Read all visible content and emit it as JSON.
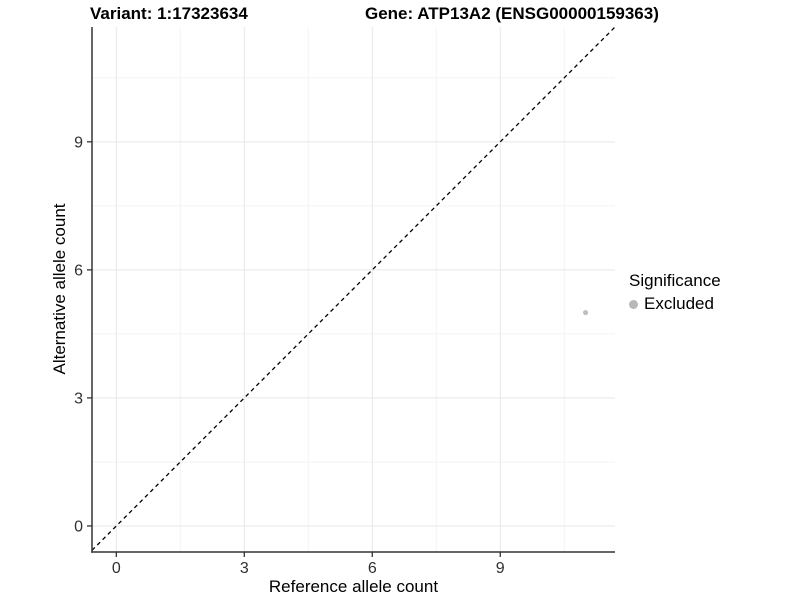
{
  "chart_data": {
    "type": "scatter",
    "titles": [
      "Variant: 1:17323634",
      "Gene: ATP13A2 (ENSG00000159363)"
    ],
    "xlabel": "Reference allele count",
    "ylabel": "Alternative allele count",
    "xlim": [
      -0.57,
      11.69
    ],
    "ylim": [
      -0.61,
      11.69
    ],
    "x_major_ticks": [
      0,
      3,
      6,
      9
    ],
    "y_major_ticks": [
      0,
      3,
      6,
      9
    ],
    "x_minor_gridlines": [
      1.5,
      4.5,
      7.5,
      10.5
    ],
    "y_minor_gridlines": [
      1.5,
      4.5,
      7.5,
      10.5
    ],
    "grid": "major-and-minor, white panel background, axis lines left and bottom only",
    "points": [
      {
        "x": 11,
        "y": 5,
        "significance": "Excluded",
        "color": "#bfbfbf"
      }
    ],
    "identity_line": {
      "slope": 1,
      "intercept": 0,
      "style": "dashed",
      "color": "#000000",
      "note": "y = x diagonal reference line"
    },
    "legend": {
      "title": "Significance",
      "position": "right",
      "entries": [
        {
          "label": "Excluded",
          "color": "#b8b8b8"
        }
      ]
    },
    "colors": {
      "axis_line": "#333333",
      "major_grid": "#e7e7e7",
      "minor_grid": "#f3f3f3",
      "tick_label": "#303030",
      "title_text": "#000000"
    }
  }
}
